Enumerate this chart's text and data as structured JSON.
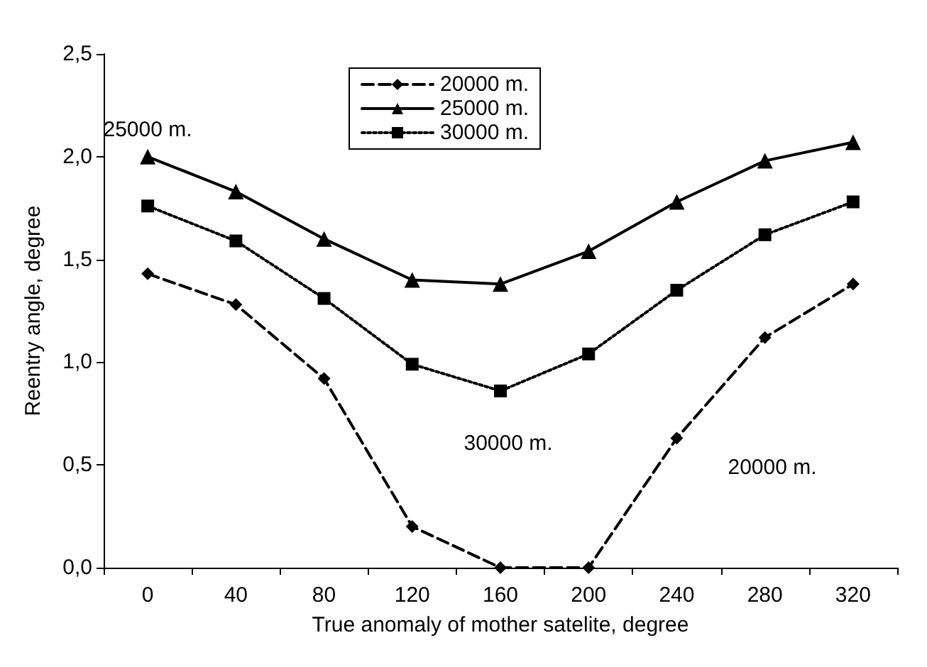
{
  "chart_data": {
    "type": "line",
    "xlabel": "True anomaly of mother satelite, degree",
    "ylabel": "Reentry angle, degree",
    "categories": [
      "0",
      "40",
      "80",
      "120",
      "160",
      "200",
      "240",
      "280",
      "320"
    ],
    "ylim": [
      0,
      2.5
    ],
    "yticks": [
      {
        "value": 0,
        "label": "0,0"
      },
      {
        "value": 0.5,
        "label": "0,5"
      },
      {
        "value": 1,
        "label": "1,0"
      },
      {
        "value": 1.5,
        "label": "1,5"
      },
      {
        "value": 2,
        "label": "2,0"
      },
      {
        "value": 2.5,
        "label": "2,5"
      }
    ],
    "grid": false,
    "legend": "top",
    "series": [
      {
        "name": "20000 m.",
        "color": "#000000",
        "marker": "diamond",
        "line_style": "dashed",
        "values": [
          1.43,
          1.28,
          0.92,
          0.2,
          0.0,
          0.0,
          0.63,
          1.12,
          1.38
        ]
      },
      {
        "name": "25000 m.",
        "color": "#000000",
        "marker": "triangle",
        "line_style": "solid",
        "values": [
          2.0,
          1.83,
          1.6,
          1.4,
          1.38,
          1.54,
          1.78,
          1.98,
          2.07
        ]
      },
      {
        "name": "30000 m.",
        "color": "#000000",
        "marker": "square",
        "line_style": "dotted",
        "values": [
          1.76,
          1.59,
          1.31,
          0.99,
          0.86,
          1.04,
          1.35,
          1.62,
          1.78
        ]
      }
    ],
    "annotations": [
      "25000 m.",
      "30000 m.",
      "20000 m."
    ]
  }
}
